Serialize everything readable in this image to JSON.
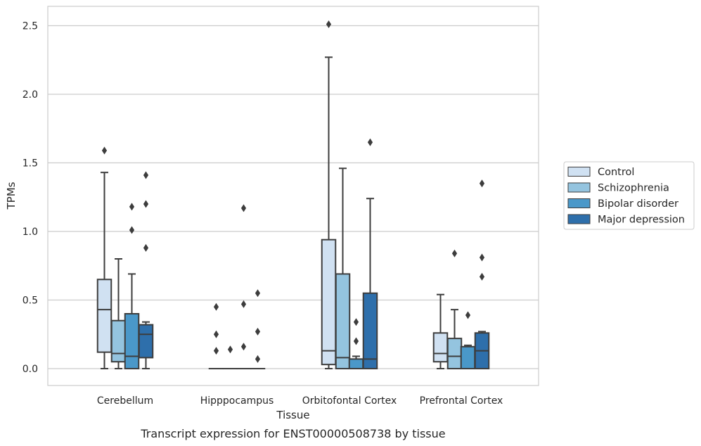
{
  "chart_data": {
    "type": "boxplot",
    "title": "",
    "xlabel": "Tissue",
    "ylabel": "TPMs",
    "caption": "Transcript expression for ENST00000508738 by tissue",
    "ylim": [
      -0.12,
      2.64
    ],
    "yticks": [
      0.0,
      0.5,
      1.0,
      1.5,
      2.0,
      2.5
    ],
    "ytick_labels": [
      "0.0",
      "0.5",
      "1.0",
      "1.5",
      "2.0",
      "2.5"
    ],
    "grid": "horizontal",
    "legend_position": "right",
    "categories": [
      "Cerebellum",
      "Hipppocampus",
      "Orbitofontal Cortex",
      "Prefrontal Cortex"
    ],
    "series": [
      {
        "name": "Control",
        "color": "#d0e1f2",
        "boxes": [
          {
            "whislo": 0.0,
            "q1": 0.12,
            "med": 0.43,
            "q3": 0.65,
            "whishi": 1.43,
            "fliers": [
              1.59
            ]
          },
          {
            "whislo": 0.0,
            "q1": 0.0,
            "med": 0.0,
            "q3": 0.0,
            "whishi": 0.0,
            "fliers": [
              0.45,
              0.25,
              0.13
            ]
          },
          {
            "whislo": 0.0,
            "q1": 0.03,
            "med": 0.13,
            "q3": 0.94,
            "whishi": 2.27,
            "fliers": [
              2.51
            ]
          },
          {
            "whislo": 0.0,
            "q1": 0.05,
            "med": 0.11,
            "q3": 0.26,
            "whishi": 0.54,
            "fliers": []
          }
        ]
      },
      {
        "name": "Schizophrenia",
        "color": "#94c4df",
        "boxes": [
          {
            "whislo": 0.0,
            "q1": 0.05,
            "med": 0.11,
            "q3": 0.35,
            "whishi": 0.8,
            "fliers": []
          },
          {
            "whislo": 0.0,
            "q1": 0.0,
            "med": 0.0,
            "q3": 0.0,
            "whishi": 0.0,
            "fliers": [
              0.14
            ]
          },
          {
            "whislo": 0.0,
            "q1": 0.0,
            "med": 0.08,
            "q3": 0.69,
            "whishi": 1.46,
            "fliers": []
          },
          {
            "whislo": 0.0,
            "q1": 0.0,
            "med": 0.09,
            "q3": 0.22,
            "whishi": 0.43,
            "fliers": [
              0.84
            ]
          }
        ]
      },
      {
        "name": "Bipolar disorder",
        "color": "#4a98c9",
        "boxes": [
          {
            "whislo": 0.0,
            "q1": 0.0,
            "med": 0.09,
            "q3": 0.4,
            "whishi": 0.69,
            "fliers": [
              1.18,
              1.01
            ]
          },
          {
            "whislo": 0.0,
            "q1": 0.0,
            "med": 0.0,
            "q3": 0.0,
            "whishi": 0.0,
            "fliers": [
              1.17,
              0.47,
              0.16
            ]
          },
          {
            "whislo": 0.0,
            "q1": 0.0,
            "med": 0.0,
            "q3": 0.07,
            "whishi": 0.09,
            "fliers": [
              0.34,
              0.2
            ]
          },
          {
            "whislo": 0.0,
            "q1": 0.0,
            "med": 0.0,
            "q3": 0.16,
            "whishi": 0.17,
            "fliers": [
              0.39
            ]
          }
        ]
      },
      {
        "name": "Major depression",
        "color": "#2e6fab",
        "boxes": [
          {
            "whislo": 0.0,
            "q1": 0.08,
            "med": 0.25,
            "q3": 0.32,
            "whishi": 0.34,
            "fliers": [
              1.41,
              1.2,
              0.88
            ]
          },
          {
            "whislo": 0.0,
            "q1": 0.0,
            "med": 0.0,
            "q3": 0.0,
            "whishi": 0.0,
            "fliers": [
              0.55,
              0.27,
              0.07
            ]
          },
          {
            "whislo": 0.0,
            "q1": 0.0,
            "med": 0.07,
            "q3": 0.55,
            "whishi": 1.24,
            "fliers": [
              1.65
            ]
          },
          {
            "whislo": 0.0,
            "q1": 0.0,
            "med": 0.13,
            "q3": 0.26,
            "whishi": 0.27,
            "fliers": [
              1.35,
              0.81,
              0.67
            ]
          }
        ]
      }
    ],
    "colors": {
      "grid": "#cccccc",
      "frame": "#cccccc",
      "box_edge": "#3d3d3d",
      "text": "#262626"
    }
  }
}
